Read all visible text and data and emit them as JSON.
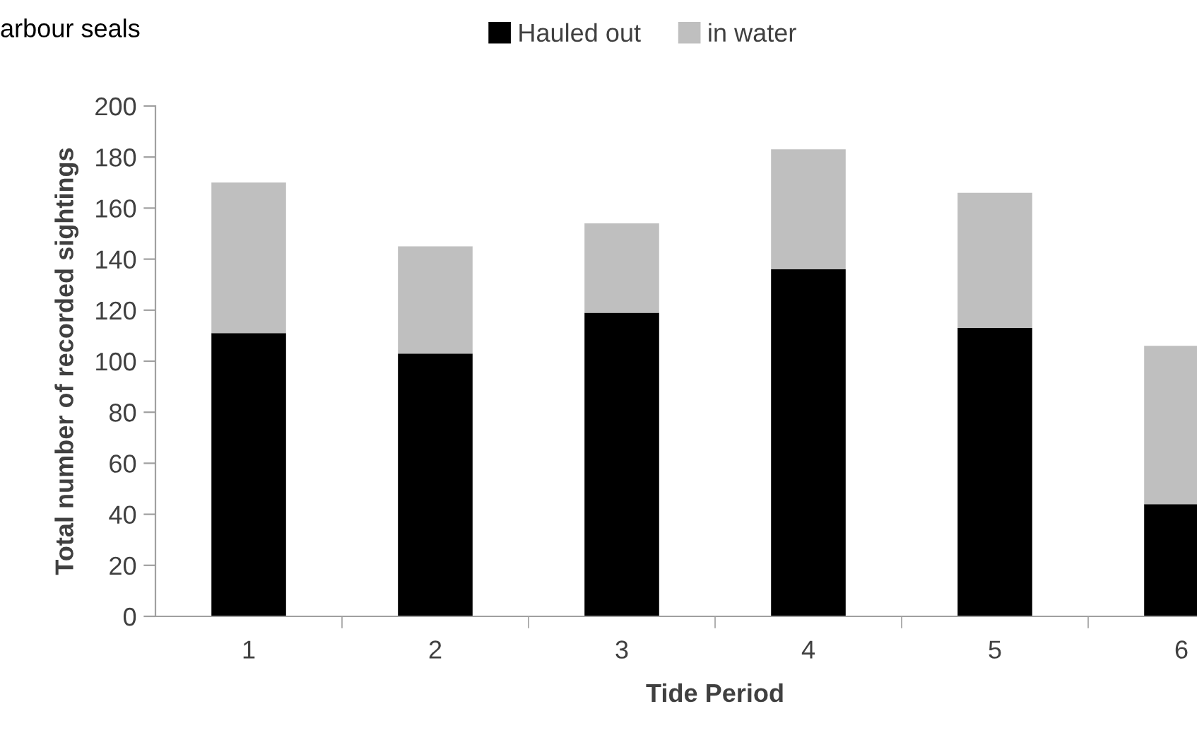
{
  "chart_data": {
    "type": "bar",
    "title": "arbour seals",
    "xlabel": "Tide Period",
    "ylabel": "Total number of recorded sightings",
    "categories": [
      "1",
      "2",
      "3",
      "4",
      "5",
      "6"
    ],
    "stacked": true,
    "series": [
      {
        "name": "Hauled out",
        "color": "#000000",
        "values": [
          111,
          103,
          119,
          136,
          113,
          44
        ]
      },
      {
        "name": "in water",
        "color": "#bfbfbf",
        "values": [
          59,
          42,
          35,
          47,
          53,
          62
        ]
      }
    ],
    "ylim": [
      0,
      200
    ],
    "yticks": [
      0,
      20,
      40,
      60,
      80,
      100,
      120,
      140,
      160,
      180,
      200
    ],
    "grid": false,
    "legend": "top"
  }
}
